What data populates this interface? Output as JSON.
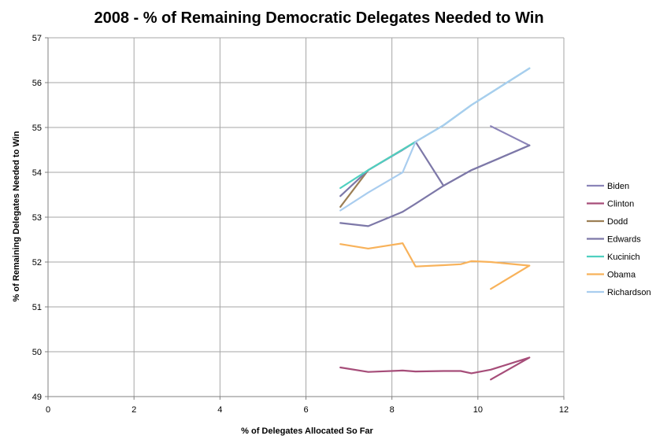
{
  "chart_data": {
    "type": "line",
    "title": "2008 - % of Remaining Democratic Delegates Needed to Win",
    "xlabel": "% of Delegates Allocated So Far",
    "ylabel": "% of Remaining Delegates Needed to Win",
    "xlim": [
      0,
      12
    ],
    "ylim": [
      49,
      57
    ],
    "xticks": [
      "0",
      "2",
      "4",
      "6",
      "8",
      "10",
      "12"
    ],
    "yticks": [
      "49",
      "50",
      "51",
      "52",
      "53",
      "54",
      "55",
      "56",
      "57"
    ],
    "x_tick_values": [
      0,
      2,
      4,
      6,
      8,
      10,
      12
    ],
    "y_tick_values": [
      49,
      50,
      51,
      52,
      53,
      54,
      55,
      56,
      57
    ],
    "grid": true,
    "legend_position": "right",
    "series": [
      {
        "name": "Biden",
        "color": "#8b84b8",
        "x": [
          10.3,
          11.2
        ],
        "y": [
          55.03,
          54.6
        ]
      },
      {
        "name": "Clinton",
        "color": "#a64d79",
        "x": [
          6.8,
          7.45,
          8.25,
          8.55,
          9.2,
          9.6,
          9.85,
          10.3,
          11.2,
          10.3
        ],
        "y": [
          49.65,
          49.55,
          49.58,
          49.56,
          49.57,
          49.57,
          49.52,
          49.6,
          49.87,
          49.38
        ]
      },
      {
        "name": "Dodd",
        "color": "#9c7f55",
        "x": [
          6.8,
          7.45,
          8.55
        ],
        "y": [
          53.23,
          54.05,
          54.68
        ]
      },
      {
        "name": "Edwards",
        "color": "#7d78a8",
        "x": [
          6.8,
          7.45,
          8.25,
          8.55,
          9.2,
          9.85,
          11.2
        ],
        "y": [
          53.47,
          54.05,
          54.5,
          54.68,
          53.7,
          54.05,
          54.6
        ],
        "x2": [
          6.8,
          7.45,
          8.25,
          8.55,
          9.2,
          9.85,
          11.2
        ],
        "y2": [
          52.87,
          52.8,
          53.12,
          53.3,
          53.7,
          54.05,
          54.6
        ]
      },
      {
        "name": "Kucinich",
        "color": "#4fd0c0",
        "x": [
          6.8,
          7.45,
          8.55,
          9.2,
          9.85,
          11.2
        ],
        "y": [
          53.65,
          54.05,
          54.68,
          55.05,
          55.5,
          56.32
        ]
      },
      {
        "name": "Obama",
        "color": "#f8b25a",
        "x": [
          6.8,
          7.45,
          8.25,
          8.55,
          9.2,
          9.6,
          9.85,
          10.3,
          11.2,
          10.3
        ],
        "y": [
          52.4,
          52.3,
          52.42,
          51.9,
          51.93,
          51.95,
          52.02,
          52.0,
          51.92,
          51.4
        ]
      },
      {
        "name": "Richardson",
        "color": "#a9cdef",
        "x": [
          6.8,
          7.45,
          8.25,
          8.55,
          9.2,
          9.85,
          11.2
        ],
        "y": [
          53.15,
          53.55,
          54.0,
          54.68,
          55.05,
          55.5,
          56.32
        ]
      }
    ]
  }
}
